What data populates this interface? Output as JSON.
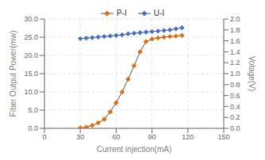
{
  "chart_data": {
    "type": "line",
    "x": [
      30,
      35,
      40,
      45,
      50,
      55,
      60,
      65,
      70,
      75,
      80,
      85,
      90,
      95,
      100,
      105,
      110,
      115
    ],
    "series": [
      {
        "name": "P-I",
        "color": "#e36c09",
        "marker": "diamond",
        "line_style": "solid",
        "values": [
          0.1,
          0.3,
          0.8,
          1.5,
          2.5,
          4.5,
          7.0,
          10.0,
          13.5,
          17.2,
          21.0,
          23.8,
          24.5,
          24.8,
          25.0,
          25.2,
          25.3,
          25.5
        ]
      },
      {
        "name": "U-I",
        "color": "#4472c4",
        "marker": "diamond",
        "line_style": "solid",
        "axis": "y2",
        "values": [
          1.64,
          1.65,
          1.66,
          1.67,
          1.68,
          1.69,
          1.7,
          1.71,
          1.73,
          1.74,
          1.75,
          1.76,
          1.77,
          1.78,
          1.79,
          1.8,
          1.82,
          1.84
        ]
      }
    ],
    "color": "#595959",
    "x_label": "Current injection(mA)",
    "y_label": "Fiber Output Power(mw)",
    "y2_label": "Votage(V)",
    "xlim": [
      0,
      150
    ],
    "xticks": [
      0,
      30,
      60,
      90,
      120,
      150
    ],
    "ylim": [
      0.0,
      30.0
    ],
    "yticks": [
      {
        "value": 0,
        "label": "0.0"
      },
      {
        "value": 5,
        "label": "5.0"
      },
      {
        "value": 10,
        "label": "10.0"
      },
      {
        "value": 15,
        "label": "15.0"
      },
      {
        "value": 20,
        "label": "20.0"
      },
      {
        "value": 25,
        "label": "25.0"
      },
      {
        "value": 30,
        "label": "30.0"
      }
    ],
    "y2lim": [
      0.0,
      2.0
    ],
    "y2ticks": [
      {
        "value": 0,
        "label": "0.0"
      },
      0.2,
      0.4,
      0.6,
      0.8,
      {
        "value": 1,
        "label": "1.0"
      },
      1.2,
      1.4,
      1.6,
      1.8,
      {
        "value": 2,
        "label": "2.0"
      }
    ],
    "grid": true,
    "legend": "top"
  }
}
